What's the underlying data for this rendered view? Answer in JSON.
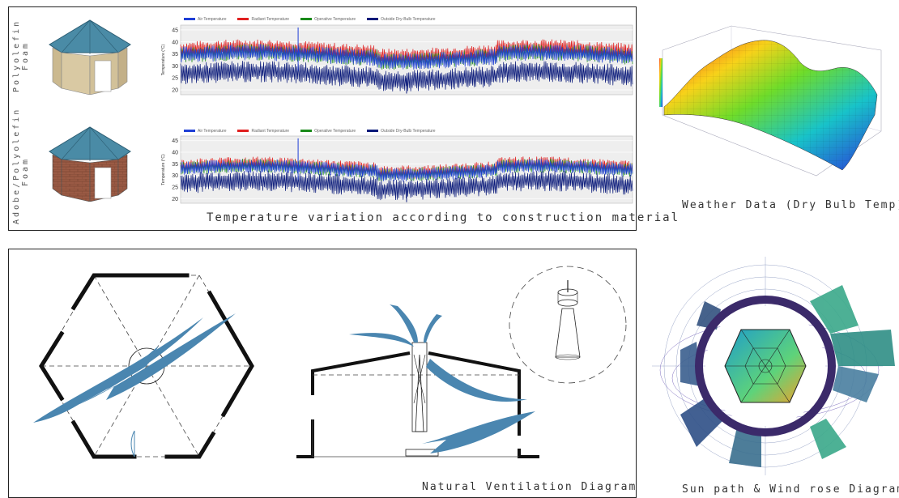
{
  "panels": {
    "temperature": {
      "caption": "Temperature variation according to construction material",
      "rows": [
        {
          "label": "Polyolefin Foam",
          "label_line1": "Polyolefin",
          "label_line2": "Foam"
        },
        {
          "label": "Adobe/Polyolefin Foam",
          "label_line1": "Adobe/Polyolefin",
          "label_line2": "Foam"
        }
      ]
    },
    "weather": {
      "caption": "Weather Data (Dry Bulb Temp)"
    },
    "ventilation": {
      "caption": "Natural Ventilation Diagram"
    },
    "sunpath": {
      "caption": "Sun path & Wind rose Diagram"
    }
  },
  "colors": {
    "roof": "#4a8ba6",
    "wall_foam": "#d9c9a3",
    "wall_adobe": "#9a5a44",
    "air": "#1f3fd6",
    "radiant": "#e02020",
    "operative": "#1a8a1a",
    "outside": "#0a1a7a",
    "flow": "#4a86b0"
  },
  "chart_data": [
    {
      "type": "line",
      "ylabel": "Temperature (°C)",
      "ylim": [
        18,
        47
      ],
      "yticks": [
        20,
        25,
        30,
        35,
        40,
        45
      ],
      "legend_position": "top",
      "series": [
        {
          "name": "Air Temperature",
          "band": [
            31,
            38
          ],
          "color": "#1f3fd6"
        },
        {
          "name": "Radiant Temperature",
          "band": [
            33,
            40
          ],
          "color": "#e02020"
        },
        {
          "name": "Operative Temperature",
          "band": [
            31,
            38
          ],
          "color": "#1a8a1a"
        },
        {
          "name": "Outside Dry-Bulb Temperature",
          "band": [
            22,
            31
          ],
          "color": "#0a1a7a"
        }
      ]
    },
    {
      "type": "line",
      "ylabel": "Temperature (°C)",
      "ylim": [
        18,
        47
      ],
      "yticks": [
        20,
        25,
        30,
        35,
        40,
        45
      ],
      "legend_position": "top",
      "series": [
        {
          "name": "Air Temperature",
          "band": [
            30,
            36
          ],
          "color": "#1f3fd6"
        },
        {
          "name": "Radiant Temperature",
          "band": [
            31,
            37
          ],
          "color": "#e02020"
        },
        {
          "name": "Operative Temperature",
          "band": [
            30,
            36
          ],
          "color": "#1a8a1a"
        },
        {
          "name": "Outside Dry-Bulb Temperature",
          "band": [
            22,
            31
          ],
          "color": "#0a1a7a"
        }
      ]
    }
  ]
}
